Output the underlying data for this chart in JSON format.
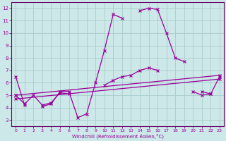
{
  "xlabel": "Windchill (Refroidissement éolien,°C)",
  "background_color": "#cce8e8",
  "grid_color": "#aacccc",
  "line_color": "#990099",
  "xlim": [
    -0.5,
    23.5
  ],
  "ylim": [
    2.5,
    12.5
  ],
  "xticks": [
    0,
    1,
    2,
    3,
    4,
    5,
    6,
    7,
    8,
    9,
    10,
    11,
    12,
    13,
    14,
    15,
    16,
    17,
    18,
    19,
    20,
    21,
    22,
    23
  ],
  "yticks": [
    3,
    4,
    5,
    6,
    7,
    8,
    9,
    10,
    11,
    12
  ],
  "series1_x": [
    0,
    1,
    3,
    4,
    5,
    6,
    7,
    8,
    9,
    10,
    11,
    12,
    14,
    15,
    16,
    17,
    18,
    19,
    21,
    22,
    23
  ],
  "series1_y": [
    6.5,
    4.2,
    4.1,
    4.3,
    5.3,
    5.3,
    3.2,
    3.5,
    6.0,
    8.6,
    11.5,
    11.2,
    11.8,
    12.0,
    11.9,
    10.0,
    8.0,
    7.7,
    5.3,
    5.1,
    6.5
  ],
  "series1_segments": [
    [
      0,
      1
    ],
    [
      3,
      4,
      5,
      6,
      7,
      8,
      9,
      10,
      11,
      12
    ],
    [
      14,
      15,
      16,
      17,
      18,
      19
    ],
    [
      21,
      22,
      23
    ]
  ],
  "series2_x": [
    0,
    1,
    2,
    3,
    4,
    5,
    6,
    10,
    11,
    12,
    13,
    14,
    15,
    16,
    20,
    21,
    22
  ],
  "series2_y": [
    5.0,
    4.3,
    5.0,
    4.2,
    4.4,
    5.2,
    5.1,
    5.8,
    6.2,
    6.5,
    6.6,
    7.0,
    7.2,
    7.0,
    5.3,
    5.0,
    5.1
  ],
  "series2_segments": [
    [
      0,
      1,
      2,
      3,
      4,
      5,
      6
    ],
    [
      10,
      11,
      12,
      13,
      14,
      15,
      16
    ],
    [
      20,
      21,
      22
    ]
  ],
  "series3_x": [
    0,
    23
  ],
  "series3_y": [
    5.0,
    6.6
  ],
  "series4_x": [
    0,
    23
  ],
  "series4_y": [
    4.7,
    6.3
  ]
}
